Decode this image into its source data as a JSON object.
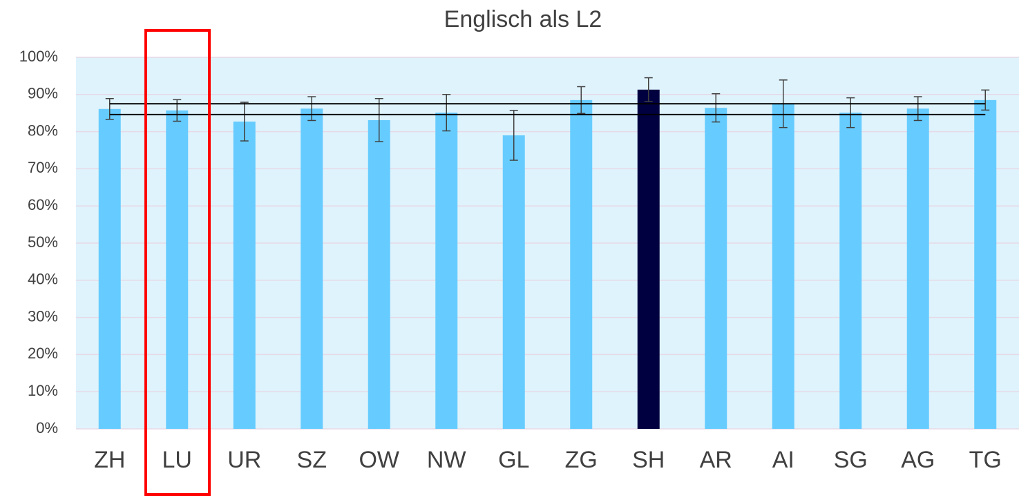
{
  "chart_data": {
    "type": "bar",
    "title": "Englisch als L2",
    "categories": [
      "ZH",
      "LU",
      "UR",
      "SZ",
      "OW",
      "NW",
      "GL",
      "ZG",
      "SH",
      "AR",
      "AI",
      "SG",
      "AG",
      "TG"
    ],
    "values": [
      86.1,
      85.7,
      82.7,
      86.2,
      83.1,
      85.1,
      79.0,
      88.5,
      91.3,
      86.4,
      87.5,
      85.1,
      86.2,
      88.5
    ],
    "errors": [
      2.8,
      2.9,
      5.2,
      3.2,
      5.8,
      4.9,
      6.7,
      3.6,
      3.2,
      3.8,
      6.4,
      4.0,
      3.2,
      2.7
    ],
    "colors": [
      "#66ccff",
      "#66ccff",
      "#66ccff",
      "#66ccff",
      "#66ccff",
      "#66ccff",
      "#66ccff",
      "#66ccff",
      "#000040",
      "#66ccff",
      "#66ccff",
      "#66ccff",
      "#66ccff",
      "#66ccff"
    ],
    "reference_lines": [
      87.5,
      84.6
    ],
    "ylim": [
      0,
      100
    ],
    "yticks": [
      {
        "value": 0,
        "label": "0%"
      },
      {
        "value": 10,
        "label": "10%"
      },
      {
        "value": 20,
        "label": "20%"
      },
      {
        "value": 30,
        "label": "30%"
      },
      {
        "value": 40,
        "label": "40%"
      },
      {
        "value": 50,
        "label": "50%"
      },
      {
        "value": 60,
        "label": "60%"
      },
      {
        "value": 70,
        "label": "70%"
      },
      {
        "value": 80,
        "label": "80%"
      },
      {
        "value": 90,
        "label": "90%"
      },
      {
        "value": 100,
        "label": "100%"
      }
    ],
    "grid": true
  }
}
